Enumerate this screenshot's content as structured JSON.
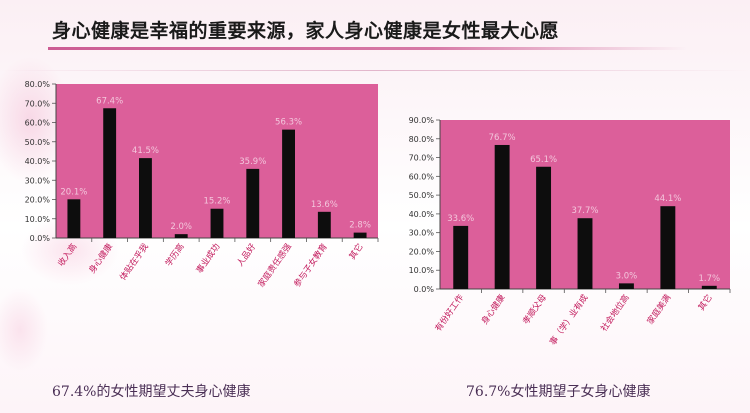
{
  "header": {
    "title": "身心健康是幸福的重要来源，家人身心健康是女性最大心愿"
  },
  "colors": {
    "plot_bg": "#dc5f9a",
    "bar": "#0d0d0d",
    "category_text": "#c2185b",
    "data_label": "#f3c6dc",
    "accent_rule": "#cc5c93"
  },
  "captions": {
    "left": "67.4%的女性期望丈夫身心健康",
    "right": "76.7%女性期望子女身心健康"
  },
  "chart_data": [
    {
      "type": "bar",
      "categories": [
        "收入高",
        "身心健康",
        "体贴在乎我",
        "学历高",
        "事业成功",
        "人品好",
        "家庭责任感强",
        "参与子女教育",
        "其它"
      ],
      "values": [
        20.1,
        67.4,
        41.5,
        2.0,
        15.2,
        35.9,
        56.3,
        13.6,
        2.8
      ],
      "value_labels": [
        "20.1%",
        "67.4%",
        "41.5%",
        "2.0%",
        "15.2%",
        "35.9%",
        "56.3%",
        "13.6%",
        "2.8%"
      ],
      "yticks": [
        "0.0%",
        "10.0%",
        "20.0%",
        "30.0%",
        "40.0%",
        "50.0%",
        "60.0%",
        "70.0%",
        "80.0%"
      ],
      "ylim": [
        0,
        80
      ],
      "title": "",
      "xlabel": "",
      "ylabel": "",
      "grid": false
    },
    {
      "type": "bar",
      "categories": [
        "有份好工作",
        "身心健康",
        "孝顺父母",
        "事（学）业有成",
        "社会地位高",
        "家庭美满",
        "其它"
      ],
      "values": [
        33.6,
        76.7,
        65.1,
        37.7,
        3.0,
        44.1,
        1.7
      ],
      "value_labels": [
        "33.6%",
        "76.7%",
        "65.1%",
        "37.7%",
        "3.0%",
        "44.1%",
        "1.7%"
      ],
      "yticks": [
        "0.0%",
        "10.0%",
        "20.0%",
        "30.0%",
        "40.0%",
        "50.0%",
        "60.0%",
        "70.0%",
        "80.0%",
        "90.0%"
      ],
      "ylim": [
        0,
        90
      ],
      "title": "",
      "xlabel": "",
      "ylabel": "",
      "grid": false
    }
  ]
}
